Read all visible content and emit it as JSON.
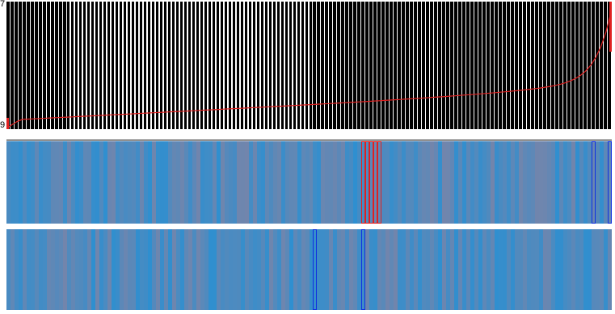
{
  "top_chart": {
    "y_max_label": "7",
    "y_min_label": "9",
    "bar_count": 150,
    "bar_color": "#000000",
    "curve_color": "#e02020",
    "curve_shape": "increasing, steep rise at right end"
  },
  "strips": [
    {
      "name": "strip-a",
      "base_color": "#2e8fd0",
      "mix_color": "#7a84a8",
      "stripe_count": 150,
      "highlights": [
        {
          "color": "#e02020",
          "index_start": 88,
          "index_end": 92
        },
        {
          "color": "#1030e0",
          "index_start": 145,
          "index_end": 145
        },
        {
          "color": "#1030e0",
          "index_start": 149,
          "index_end": 149
        }
      ]
    },
    {
      "name": "strip-b",
      "base_color": "#2e8fd0",
      "mix_color": "#7a84a8",
      "stripe_count": 150,
      "highlights": [
        {
          "color": "#1030e0",
          "index_start": 76,
          "index_end": 76
        },
        {
          "color": "#1030e0",
          "index_start": 88,
          "index_end": 88
        }
      ]
    }
  ]
}
